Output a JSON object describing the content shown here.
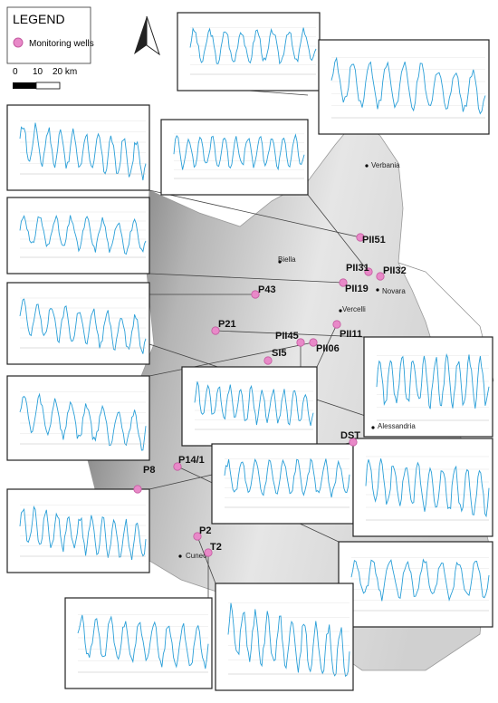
{
  "legend": {
    "title": "LEGEND",
    "items": [
      "Monitoring wells"
    ]
  },
  "scale": {
    "labels": [
      "0",
      "10",
      "20 km"
    ]
  },
  "cities": [
    "Verbania",
    "Biella",
    "Novara",
    "Vercelli",
    "Alessandria",
    "Cuneo"
  ],
  "wells": [
    "PII51",
    "PII31",
    "PII32",
    "PII19",
    "P43",
    "P21",
    "PII45",
    "PII11",
    "PII06",
    "SI5",
    "DST",
    "P14/1",
    "P8",
    "P2",
    "T2"
  ]
}
